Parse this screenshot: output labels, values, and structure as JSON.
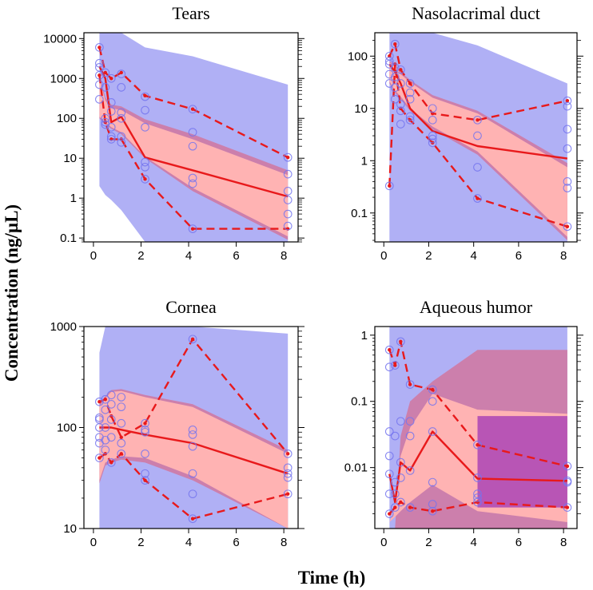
{
  "figure": {
    "ylabel": "Concentration (ng/µL)",
    "xlabel": "Time (h)"
  },
  "colors": {
    "pi_outer": "#b0b0f5",
    "pi_mid": "#cc7fac",
    "pi_median": "#ffb3b3",
    "pi_median_overlap": "#b855b5",
    "line": "#e8191b",
    "obs": "#7474ee"
  },
  "chart_data": [
    {
      "type": "line",
      "title": "Tears",
      "x_ticks": [
        0,
        2,
        4,
        6,
        8
      ],
      "y_ticks": [
        0.1,
        1,
        10,
        100,
        1000,
        10000
      ],
      "y_tick_labels": [
        "0.1",
        "1",
        "10",
        "100",
        "1000",
        "10000"
      ],
      "xlim": [
        -0.4,
        8.6
      ],
      "ylim": [
        0.08,
        14000
      ],
      "ylog": true,
      "bands": [
        {
          "name": "outer-pi",
          "color": "#b0b0f5",
          "x": [
            0.25,
            0.5,
            0.75,
            1.17,
            2.17,
            4.17,
            8.17
          ],
          "lo": [
            2,
            1.2,
            0.9,
            0.5,
            0.08,
            0.08,
            0.08
          ],
          "hi": [
            14000,
            14000,
            14000,
            14000,
            6000,
            3600,
            700
          ]
        },
        {
          "name": "median-pi-outer",
          "color": "#cc7fac",
          "x": [
            0.25,
            0.5,
            0.75,
            1.17,
            2.17,
            4.17,
            8.17
          ],
          "lo": [
            100,
            70,
            55,
            40,
            10,
            1.5,
            0.09
          ],
          "hi": [
            1200,
            330,
            220,
            200,
            95,
            40,
            5
          ]
        },
        {
          "name": "median-pi",
          "color": "#ffb3b3",
          "x": [
            0.25,
            0.5,
            0.75,
            1.17,
            2.17,
            4.17,
            8.17
          ],
          "lo": [
            110,
            80,
            60,
            45,
            11,
            1.8,
            0.11
          ],
          "hi": [
            1000,
            280,
            180,
            160,
            75,
            30,
            3.8
          ]
        }
      ],
      "series": [
        {
          "name": "observed-upper",
          "style": "dashed",
          "x": [
            0.25,
            0.5,
            0.75,
            1.17,
            2.17,
            4.17,
            8.17
          ],
          "y": [
            6000,
            1400,
            1000,
            1400,
            370,
            170,
            10.5
          ]
        },
        {
          "name": "observed-median",
          "style": "solid",
          "x": [
            0.25,
            0.5,
            0.75,
            1.17,
            2.17,
            4.17,
            8.17
          ],
          "y": [
            2000,
            1000,
            80,
            110,
            10.5,
            5,
            1.1
          ]
        },
        {
          "name": "observed-lower",
          "style": "dashed",
          "x": [
            0.25,
            0.5,
            0.75,
            1.17,
            2.17,
            4.17,
            8.17
          ],
          "y": [
            1200,
            80,
            30,
            30,
            3,
            0.17,
            0.17
          ]
        }
      ],
      "points": {
        "x": [
          0.25,
          0.25,
          0.25,
          0.25,
          0.25,
          0.25,
          0.5,
          0.5,
          0.5,
          0.5,
          0.5,
          0.75,
          0.75,
          0.75,
          0.75,
          0.75,
          0.75,
          1.17,
          1.17,
          1.17,
          1.17,
          1.17,
          1.17,
          2.17,
          2.17,
          2.17,
          2.17,
          2.17,
          2.17,
          4.17,
          4.17,
          4.17,
          4.17,
          4.17,
          4.17,
          8.17,
          8.17,
          8.17,
          8.17,
          8.17,
          8.17
        ],
        "y": [
          6000,
          2400,
          1900,
          1200,
          700,
          300,
          1400,
          600,
          100,
          80,
          70,
          1000,
          250,
          150,
          60,
          35,
          30,
          1300,
          600,
          140,
          100,
          35,
          25,
          350,
          160,
          60,
          8,
          6,
          3,
          170,
          45,
          20,
          3.2,
          2.3,
          0.17,
          10.5,
          4,
          1.5,
          0.9,
          0.4,
          0.2
        ]
      }
    },
    {
      "type": "line",
      "title": "Nasolacrimal duct",
      "x_ticks": [
        0,
        2,
        4,
        6,
        8
      ],
      "y_ticks": [
        0.1,
        1,
        10,
        100
      ],
      "y_tick_labels": [
        "0.1",
        "1",
        "10",
        "100"
      ],
      "xlim": [
        -0.4,
        8.6
      ],
      "ylim": [
        0.028,
        280
      ],
      "ylog": true,
      "bands": [
        {
          "name": "outer-pi",
          "color": "#b0b0f5",
          "x": [
            0.25,
            0.5,
            0.75,
            1.17,
            2.17,
            4.17,
            8.17
          ],
          "lo": [
            0.028,
            0.028,
            0.028,
            0.028,
            0.028,
            0.028,
            0.028
          ],
          "hi": [
            280,
            280,
            280,
            280,
            280,
            160,
            30
          ]
        },
        {
          "name": "median-pi-outer",
          "color": "#cc7fac",
          "x": [
            0.25,
            0.5,
            0.75,
            1.17,
            2.17,
            4.17,
            8.17
          ],
          "lo": [
            30,
            20,
            15,
            9,
            4,
            1.3,
            0.03
          ],
          "hi": [
            80,
            70,
            50,
            35,
            18,
            9,
            0.9
          ]
        },
        {
          "name": "median-pi",
          "color": "#ffb3b3",
          "x": [
            0.25,
            0.5,
            0.75,
            1.17,
            2.17,
            4.17,
            8.17
          ],
          "lo": [
            33,
            22,
            17,
            10,
            4.5,
            1.5,
            0.035
          ],
          "hi": [
            75,
            65,
            45,
            32,
            16,
            8,
            0.75
          ]
        }
      ],
      "series": [
        {
          "name": "observed-upper",
          "style": "dashed",
          "x": [
            0.25,
            0.5,
            0.75,
            1.17,
            2.17,
            4.17,
            8.17
          ],
          "y": [
            100,
            170,
            55,
            30,
            8,
            6,
            14
          ]
        },
        {
          "name": "observed-median",
          "style": "solid",
          "x": [
            0.25,
            0.5,
            0.75,
            1.17,
            2.17,
            4.17,
            8.17
          ],
          "y": [
            70,
            50,
            30,
            10,
            3.7,
            1.9,
            1.1
          ]
        },
        {
          "name": "observed-lower",
          "style": "dashed",
          "x": [
            0.25,
            0.5,
            0.75,
            1.17,
            2.17,
            4.17,
            8.17
          ],
          "y": [
            0.33,
            70,
            10,
            6,
            2.2,
            0.19,
            0.055
          ]
        }
      ],
      "points": {
        "x": [
          0.25,
          0.25,
          0.25,
          0.25,
          0.25,
          0.25,
          0.5,
          0.5,
          0.5,
          0.5,
          0.5,
          0.75,
          0.75,
          0.75,
          0.75,
          0.75,
          1.17,
          1.17,
          1.17,
          1.17,
          1.17,
          2.17,
          2.17,
          2.17,
          2.17,
          2.17,
          4.17,
          4.17,
          4.17,
          4.17,
          8.17,
          8.17,
          8.17,
          8.17,
          8.17,
          8.17,
          8.17
        ],
        "y": [
          100,
          80,
          70,
          45,
          30,
          0.33,
          170,
          60,
          40,
          25,
          15,
          55,
          30,
          12,
          9,
          5,
          30,
          20,
          15,
          7,
          6,
          10,
          6,
          3,
          2.6,
          2.2,
          6,
          3,
          0.75,
          0.19,
          14,
          11,
          4,
          1.7,
          0.4,
          0.3,
          0.055
        ]
      }
    },
    {
      "type": "line",
      "title": "Cornea",
      "x_ticks": [
        0,
        2,
        4,
        6,
        8
      ],
      "y_ticks": [
        10,
        100,
        1000
      ],
      "y_tick_labels": [
        "10",
        "100",
        "1000"
      ],
      "xlim": [
        -0.4,
        8.6
      ],
      "ylim": [
        10,
        1000
      ],
      "ylog": true,
      "bands": [
        {
          "name": "outer-pi",
          "color": "#b0b0f5",
          "x": [
            0.25,
            0.5,
            0.75,
            1.17,
            2.17,
            4.17,
            8.17
          ],
          "lo": [
            10,
            10,
            10,
            10,
            10,
            10,
            10
          ],
          "hi": [
            550,
            1000,
            1000,
            1000,
            1000,
            1000,
            850
          ]
        },
        {
          "name": "median-pi-outer",
          "color": "#cc7fac",
          "x": [
            0.25,
            0.5,
            0.75,
            1.17,
            2.17,
            4.17,
            8.17
          ],
          "lo": [
            28,
            42,
            45,
            48,
            45,
            30,
            10
          ],
          "hi": [
            170,
            205,
            235,
            240,
            210,
            170,
            60
          ]
        },
        {
          "name": "median-pi",
          "color": "#ffb3b3",
          "x": [
            0.25,
            0.5,
            0.75,
            1.17,
            2.17,
            4.17,
            8.17
          ],
          "lo": [
            30,
            45,
            48,
            52,
            50,
            33,
            10
          ],
          "hi": [
            160,
            195,
            225,
            230,
            200,
            160,
            55
          ]
        }
      ],
      "series": [
        {
          "name": "observed-upper",
          "style": "dashed",
          "x": [
            0.25,
            0.5,
            0.75,
            1.17,
            2.17,
            4.17,
            8.17
          ],
          "y": [
            180,
            190,
            130,
            80,
            110,
            750,
            55
          ]
        },
        {
          "name": "observed-median",
          "style": "solid",
          "x": [
            0.25,
            0.5,
            0.75,
            1.17,
            2.17,
            4.17,
            8.17
          ],
          "y": [
            100,
            100,
            100,
            95,
            85,
            70,
            35
          ]
        },
        {
          "name": "observed-lower",
          "style": "dashed",
          "x": [
            0.25,
            0.5,
            0.75,
            1.17,
            2.17,
            4.17,
            8.17
          ],
          "y": [
            50,
            55,
            45,
            55,
            30,
            12.5,
            22
          ]
        }
      ],
      "points": {
        "x": [
          0.25,
          0.25,
          0.25,
          0.25,
          0.25,
          0.25,
          0.25,
          0.5,
          0.5,
          0.5,
          0.5,
          0.5,
          0.75,
          0.75,
          0.75,
          0.75,
          0.75,
          1.17,
          1.17,
          1.17,
          1.17,
          1.17,
          2.17,
          2.17,
          2.17,
          2.17,
          2.17,
          2.17,
          4.17,
          4.17,
          4.17,
          4.17,
          4.17,
          4.17,
          4.17,
          8.17,
          8.17,
          8.17,
          8.17,
          8.17
        ],
        "y": [
          180,
          125,
          120,
          100,
          80,
          70,
          50,
          190,
          150,
          100,
          75,
          60,
          210,
          170,
          120,
          80,
          45,
          200,
          160,
          110,
          70,
          55,
          110,
          95,
          90,
          55,
          35,
          30,
          750,
          95,
          85,
          65,
          35,
          22,
          12.5,
          55,
          40,
          35,
          32,
          22
        ]
      }
    },
    {
      "type": "line",
      "title": "Aqueous humor",
      "x_ticks": [
        0,
        2,
        4,
        6,
        8
      ],
      "y_ticks": [
        0.01,
        0.1,
        1
      ],
      "y_tick_labels": [
        "0.01",
        "0.1",
        "1"
      ],
      "xlim": [
        -0.4,
        8.6
      ],
      "ylim": [
        0.0012,
        1.35
      ],
      "ylog": true,
      "bands": [
        {
          "name": "outer-pi",
          "color": "#b0b0f5",
          "x": [
            0.25,
            0.5,
            0.75,
            1.17,
            2.17,
            4.17,
            8.17
          ],
          "lo": [
            0.0012,
            0.0012,
            0.0012,
            0.0012,
            0.0012,
            0.0012,
            0.0012
          ],
          "hi": [
            1.35,
            1.35,
            1.35,
            1.35,
            1.35,
            1.35,
            1.35
          ]
        },
        {
          "name": "median-pi-outer",
          "color": "#cc7fac",
          "x": [
            0.25,
            0.5,
            0.75,
            1.17,
            2.17,
            4.17,
            8.17
          ],
          "lo": [
            0.0012,
            0.0012,
            0.0012,
            0.0012,
            0.0012,
            0.0012,
            0.0012
          ],
          "hi": [
            0.0012,
            0.0012,
            0.03,
            0.1,
            0.2,
            0.6,
            0.6
          ]
        },
        {
          "name": "median-pi",
          "color": "#ffb3b3",
          "x": [
            0.25,
            0.5,
            0.75,
            1.17,
            2.17,
            4.17,
            8.17
          ],
          "lo": [
            0.0015,
            0.0018,
            0.0022,
            0.003,
            0.0055,
            0.0022,
            0.0015
          ],
          "hi": [
            0.0015,
            0.0025,
            0.015,
            0.04,
            0.13,
            0.075,
            0.065
          ]
        },
        {
          "name": "median-pi-overlap",
          "color": "#b855b5",
          "x": [
            4.17,
            8.17
          ],
          "lo": [
            0.0025,
            0.0025
          ],
          "hi": [
            0.06,
            0.06
          ]
        }
      ],
      "series": [
        {
          "name": "observed-upper",
          "style": "dashed",
          "x": [
            0.25,
            0.5,
            0.75,
            1.17,
            2.17,
            4.17,
            8.17
          ],
          "y": [
            0.6,
            0.35,
            0.8,
            0.18,
            0.15,
            0.022,
            0.0105
          ]
        },
        {
          "name": "observed-median",
          "style": "solid",
          "x": [
            0.25,
            0.5,
            0.75,
            1.17,
            2.17,
            4.17,
            8.17
          ],
          "y": [
            0.008,
            0.003,
            0.012,
            0.009,
            0.035,
            0.0068,
            0.0063
          ]
        },
        {
          "name": "observed-lower",
          "style": "dashed",
          "x": [
            0.25,
            0.5,
            0.75,
            1.17,
            2.17,
            4.17,
            8.17
          ],
          "y": [
            0.002,
            0.0025,
            0.003,
            0.0025,
            0.0022,
            0.003,
            0.0025
          ]
        }
      ],
      "points": {
        "x": [
          0.25,
          0.25,
          0.25,
          0.25,
          0.25,
          0.25,
          0.25,
          0.5,
          0.5,
          0.5,
          0.5,
          0.5,
          0.75,
          0.75,
          0.75,
          0.75,
          0.75,
          1.17,
          1.17,
          1.17,
          1.17,
          1.17,
          2.17,
          2.17,
          2.17,
          2.17,
          2.17,
          2.17,
          4.17,
          4.17,
          4.17,
          4.17,
          4.17,
          8.17,
          8.17,
          8.17,
          8.17
        ],
        "y": [
          0.6,
          0.33,
          0.035,
          0.015,
          0.008,
          0.004,
          0.002,
          0.35,
          0.03,
          0.006,
          0.004,
          0.0025,
          0.8,
          0.05,
          0.012,
          0.007,
          0.003,
          0.18,
          0.05,
          0.03,
          0.009,
          0.0025,
          0.15,
          0.1,
          0.035,
          0.006,
          0.0028,
          0.0022,
          0.022,
          0.007,
          0.004,
          0.0035,
          0.003,
          0.0105,
          0.0063,
          0.006,
          0.0025
        ]
      }
    }
  ]
}
